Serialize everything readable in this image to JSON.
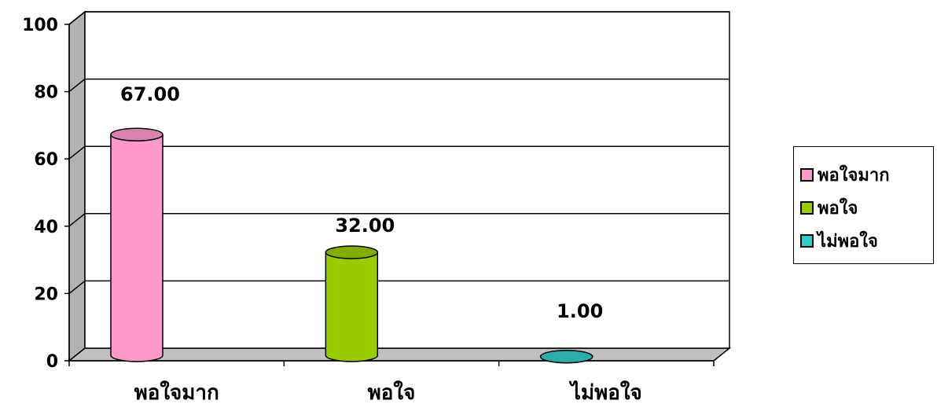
{
  "chart_data": {
    "type": "bar",
    "style": "3d-cylinder",
    "title": "",
    "xlabel": "",
    "ylabel": "",
    "ylim": [
      0,
      100
    ],
    "yticks": [
      0,
      20,
      40,
      60,
      80,
      100
    ],
    "grid": true,
    "legend_position": "right",
    "categories": [
      "พอใจมาก",
      "พอใจ",
      "ไม่พอใจ"
    ],
    "values": [
      67.0,
      32.0,
      1.0
    ],
    "data_labels": [
      "67.00",
      "32.00",
      "1.00"
    ],
    "colors": [
      "#ff99cc",
      "#99cc00",
      "#33cccc"
    ],
    "legend": [
      "พอใจมาก",
      "พอใจ",
      "ไม่พอใจ"
    ]
  }
}
